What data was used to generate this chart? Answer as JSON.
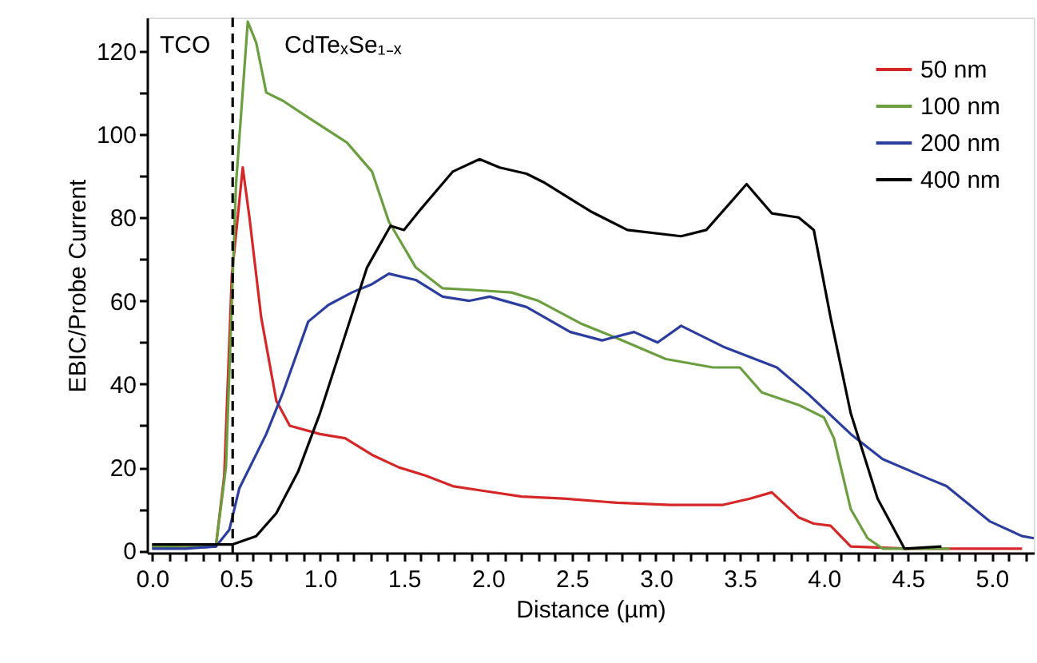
{
  "chart_data": {
    "type": "line",
    "xlabel": "Distance (µm)",
    "ylabel": "EBIC/Probe Current",
    "xlim": [
      -0.03,
      5.25
    ],
    "ylim": [
      -0.5,
      128
    ],
    "xticks": [
      {
        "value": 0,
        "label": "0.0"
      },
      {
        "value": 0.1,
        "label": null
      },
      {
        "value": 0.2,
        "label": null
      },
      {
        "value": 0.3,
        "label": null
      },
      {
        "value": 0.4,
        "label": null
      },
      0.5,
      {
        "value": 0.6,
        "label": null
      },
      {
        "value": 0.7,
        "label": null
      },
      {
        "value": 0.8,
        "label": null
      },
      {
        "value": 0.9,
        "label": null
      },
      {
        "value": 1,
        "label": "1.0"
      },
      {
        "value": 1.1,
        "label": null
      },
      {
        "value": 1.2,
        "label": null
      },
      {
        "value": 1.3,
        "label": null
      },
      {
        "value": 1.4,
        "label": null
      },
      1.5,
      {
        "value": 1.6,
        "label": null
      },
      {
        "value": 1.7,
        "label": null
      },
      {
        "value": 1.8,
        "label": null
      },
      {
        "value": 1.9,
        "label": null
      },
      {
        "value": 2,
        "label": "2.0"
      },
      {
        "value": 2.1,
        "label": null
      },
      {
        "value": 2.2,
        "label": null
      },
      {
        "value": 2.3,
        "label": null
      },
      {
        "value": 2.4,
        "label": null
      },
      2.5,
      {
        "value": 2.6,
        "label": null
      },
      {
        "value": 2.7,
        "label": null
      },
      {
        "value": 2.8,
        "label": null
      },
      {
        "value": 2.9,
        "label": null
      },
      {
        "value": 3,
        "label": "3.0"
      },
      {
        "value": 3.1,
        "label": null
      },
      {
        "value": 3.2,
        "label": null
      },
      {
        "value": 3.3,
        "label": null
      },
      {
        "value": 3.4,
        "label": null
      },
      3.5,
      {
        "value": 3.6,
        "label": null
      },
      {
        "value": 3.7,
        "label": null
      },
      {
        "value": 3.8,
        "label": null
      },
      {
        "value": 3.9,
        "label": null
      },
      {
        "value": 4,
        "label": "4.0"
      },
      {
        "value": 4.1,
        "label": null
      },
      {
        "value": 4.2,
        "label": null
      },
      {
        "value": 4.3,
        "label": null
      },
      {
        "value": 4.4,
        "label": null
      },
      4.5,
      {
        "value": 4.6,
        "label": null
      },
      {
        "value": 4.7,
        "label": null
      },
      {
        "value": 4.8,
        "label": null
      },
      {
        "value": 4.9,
        "label": null
      },
      {
        "value": 5,
        "label": "5.0"
      },
      {
        "value": 5.1,
        "label": null
      },
      {
        "value": 5.2,
        "label": null
      }
    ],
    "yticks": [
      0,
      {
        "value": 10,
        "label": null
      },
      20,
      {
        "value": 30,
        "label": null
      },
      40,
      {
        "value": 50,
        "label": null
      },
      60,
      {
        "value": 70,
        "label": null
      },
      80,
      {
        "value": 90,
        "label": null
      },
      100,
      {
        "value": 110,
        "label": null
      },
      120
    ],
    "grid": false,
    "legend": "top right",
    "marker": "none",
    "line_style": "solid",
    "ref_lines": [
      {
        "axis": "x",
        "value": 0.48,
        "color": "#000000",
        "line_style": "dashed"
      }
    ],
    "annotations": [
      "TCO",
      "CdTeₓSe₁₋ₓ"
    ],
    "series": [
      {
        "name": "50 nm",
        "color": "#d62728",
        "x": [
          0,
          0.2,
          0.38,
          0.43,
          0.475,
          0.54,
          0.58,
          0.65,
          0.74,
          0.82,
          1.0,
          1.15,
          1.31,
          1.47,
          1.63,
          1.79,
          1.95,
          2.2,
          2.45,
          2.77,
          3.09,
          3.4,
          3.56,
          3.69,
          3.85,
          3.94,
          4.04,
          4.16,
          4.5,
          5.18
        ],
        "values": [
          1,
          0.8,
          1,
          18,
          66,
          92,
          80,
          56,
          36,
          30,
          28,
          27,
          23,
          20,
          18,
          15.5,
          14.5,
          13,
          12.5,
          11.5,
          11,
          11,
          12.5,
          14,
          8,
          6.5,
          6,
          1,
          0.5,
          0.5
        ]
      },
      {
        "name": "100 nm",
        "color": "#6a9e3f",
        "x": [
          0,
          0.2,
          0.38,
          0.44,
          0.5,
          0.57,
          0.62,
          0.68,
          0.78,
          0.93,
          1.16,
          1.31,
          1.41,
          1.57,
          1.73,
          1.95,
          2.14,
          2.3,
          2.55,
          2.77,
          3.06,
          3.34,
          3.5,
          3.63,
          3.85,
          4.0,
          4.06,
          4.16,
          4.26,
          4.35,
          4.75
        ],
        "values": [
          1,
          0.8,
          1,
          20,
          88,
          127,
          122,
          110,
          108,
          104,
          98,
          91,
          79,
          68,
          63,
          62.5,
          62,
          60,
          54.6,
          51,
          46,
          44,
          44,
          38,
          35,
          32,
          27,
          10,
          3,
          0.5,
          0.5
        ]
      },
      {
        "name": "200 nm",
        "color": "#2b3ea0",
        "x": [
          0,
          0.2,
          0.38,
          0.46,
          0.52,
          0.68,
          0.78,
          0.93,
          1.05,
          1.19,
          1.31,
          1.41,
          1.57,
          1.73,
          1.89,
          2.01,
          2.23,
          2.49,
          2.68,
          2.87,
          3.01,
          3.15,
          3.4,
          3.72,
          3.91,
          4.16,
          4.35,
          4.61,
          4.73,
          4.99,
          5.18,
          5.25
        ],
        "values": [
          0.5,
          0.5,
          1,
          5,
          15,
          28,
          38,
          55,
          59,
          62,
          64,
          66.5,
          65,
          61,
          60,
          61,
          58.5,
          52.5,
          50.5,
          52.5,
          50,
          54,
          49,
          44,
          37.5,
          28,
          22,
          17.5,
          15.5,
          7,
          3.5,
          3
        ]
      },
      {
        "name": "400 nm",
        "color": "#000000",
        "x": [
          0,
          0.2,
          0.48,
          0.62,
          0.74,
          0.87,
          1.0,
          1.12,
          1.28,
          1.42,
          1.5,
          1.6,
          1.79,
          1.95,
          2.07,
          2.23,
          2.33,
          2.61,
          2.83,
          3.15,
          3.3,
          3.54,
          3.69,
          3.85,
          3.94,
          4.04,
          4.16,
          4.32,
          4.48,
          4.7
        ],
        "values": [
          1.5,
          1.5,
          1.5,
          3.5,
          9,
          19,
          33,
          48,
          68,
          78,
          77,
          82,
          91,
          94,
          92,
          90.5,
          88.5,
          81.5,
          77,
          75.5,
          77,
          88,
          81,
          80,
          77,
          56,
          33,
          12.5,
          0.5,
          1
        ]
      }
    ]
  }
}
